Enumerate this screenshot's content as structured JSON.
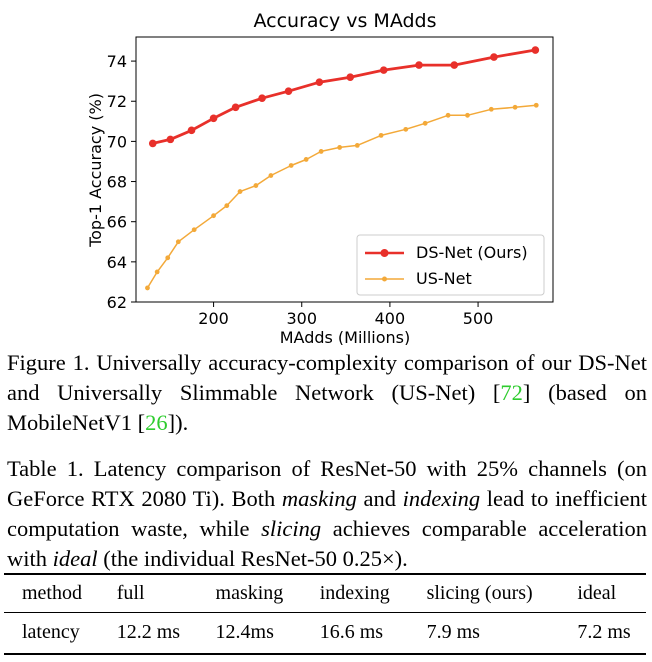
{
  "chart_data": {
    "type": "line",
    "title": "Accuracy vs MAdds",
    "xlabel": "MAdds (Millions)",
    "ylabel": "Top-1 Accuracy (%)",
    "xlim": [
      112,
      585
    ],
    "ylim": [
      62,
      75.2
    ],
    "xticks": [
      200,
      300,
      400,
      500
    ],
    "yticks": [
      62,
      64,
      66,
      68,
      70,
      72,
      74
    ],
    "legend_position": "lower-right",
    "series": [
      {
        "name": "DS-Net (Ours)",
        "color": "#e8302a",
        "x": [
          131,
          151,
          175,
          200,
          225,
          255,
          285,
          320,
          355,
          393,
          433,
          473,
          518,
          565
        ],
        "y": [
          69.9,
          70.1,
          70.55,
          71.15,
          71.7,
          72.15,
          72.5,
          72.95,
          73.2,
          73.55,
          73.8,
          73.8,
          74.2,
          74.55
        ]
      },
      {
        "name": "US-Net",
        "color": "#f3a939",
        "x": [
          125,
          136,
          148,
          160,
          178,
          200,
          215,
          230,
          248,
          265,
          288,
          305,
          322,
          343,
          363,
          390,
          418,
          440,
          466,
          488,
          515,
          542,
          566
        ],
        "y": [
          62.7,
          63.5,
          64.2,
          65.0,
          65.6,
          66.3,
          66.8,
          67.5,
          67.8,
          68.3,
          68.8,
          69.1,
          69.5,
          69.7,
          69.8,
          70.3,
          70.6,
          70.9,
          71.3,
          71.3,
          71.6,
          71.7,
          71.8
        ]
      }
    ]
  },
  "figure_caption": {
    "label": "Figure 1. Universally accuracy-complexity comparison of our DS-Net and Universally Slimmable Network (US-Net) [",
    "cite1": "72",
    "mid": "] (based on MobileNetV1 [",
    "cite2": "26",
    "end": "])."
  },
  "table_caption": {
    "p1": "Table 1. Latency comparison of ResNet-50 with 25% channels (on GeForce RTX 2080 Ti). Both ",
    "em1": "masking",
    "p2": " and ",
    "em2": "indexing",
    "p3": " lead to inefficient computation waste, while ",
    "em3": "slicing",
    "p4": " achieves comparable acceleration with ",
    "em4": "ideal",
    "p5": " (the individual ResNet-50 0.25×)."
  },
  "table": {
    "headers": [
      "method",
      "full",
      "masking",
      "indexing",
      "slicing (ours)",
      "ideal"
    ],
    "row": [
      "latency",
      "12.2 ms",
      "12.4ms",
      "16.6 ms",
      "7.9 ms",
      "7.2 ms"
    ]
  }
}
